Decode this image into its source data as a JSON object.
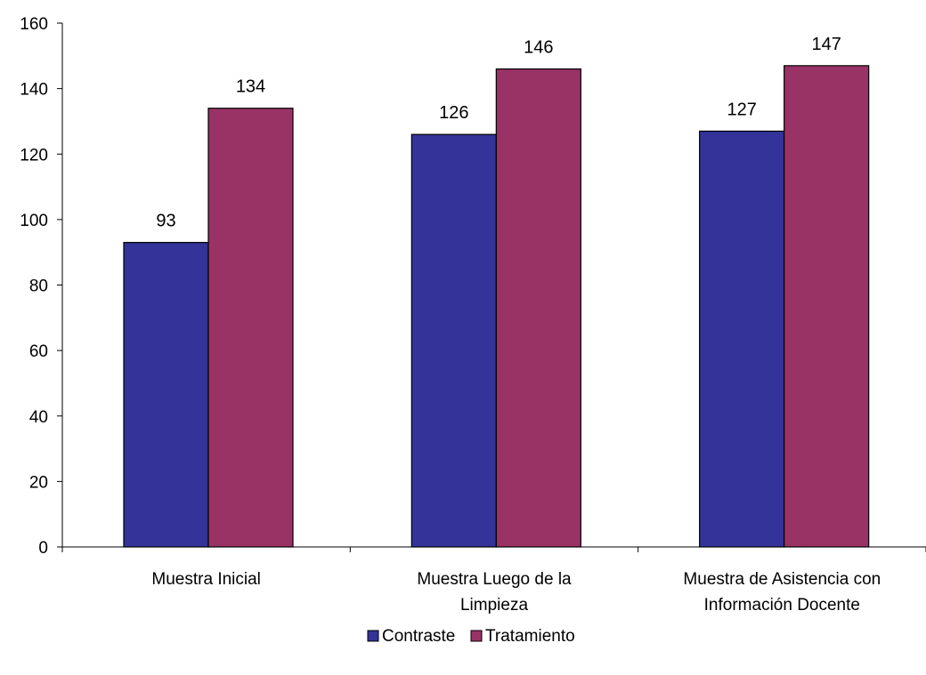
{
  "chart_data": {
    "type": "bar",
    "title": "",
    "xlabel": "",
    "ylabel": "",
    "ylim": [
      0,
      160
    ],
    "yticks": [
      0,
      20,
      40,
      60,
      80,
      100,
      120,
      140,
      160
    ],
    "grid": false,
    "legend_position": "bottom",
    "categories": [
      [
        "Muestra Inicial"
      ],
      [
        "Muestra Luego de la",
        "Limpieza"
      ],
      [
        "Muestra de Asistencia con",
        "Información Docente"
      ]
    ],
    "series": [
      {
        "name": "Contraste",
        "color": "#333399",
        "values": [
          93,
          126,
          127
        ]
      },
      {
        "name": "Tratamiento",
        "color": "#993366",
        "values": [
          134,
          146,
          147
        ]
      }
    ]
  }
}
